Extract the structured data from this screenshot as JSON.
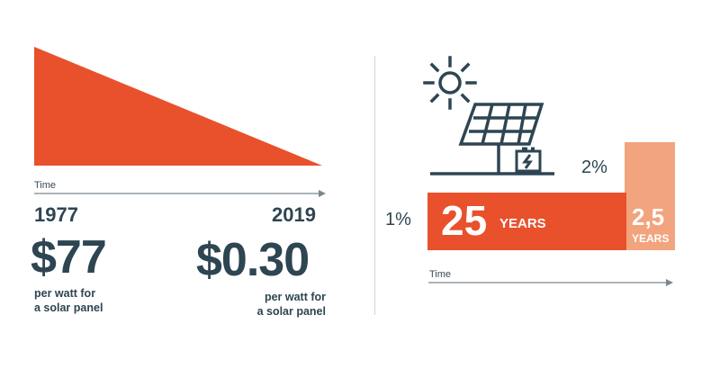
{
  "colors": {
    "accent": "#e8512b",
    "accent_light": "#f2a47e",
    "text": "#2e4552",
    "arrow": "#7a8790"
  },
  "icons": {
    "solar_panel": "solar-panel-icon",
    "sun": "sun-icon",
    "battery": "battery-icon"
  },
  "left": {
    "axis_label": "Time",
    "start_year": "1977",
    "end_year": "2019",
    "start_price": "$77",
    "end_price": "$0.30",
    "start_unit_line1": "per watt for",
    "start_unit_line2": "a solar panel",
    "end_unit_line1": "per watt for",
    "end_unit_line2": "a solar panel"
  },
  "right": {
    "axis_label": "Time",
    "low_rate": "1%",
    "high_rate": "2%",
    "long_value": "25",
    "long_unit": "YEARS",
    "short_value": "2,5",
    "short_unit": "YEARS"
  }
}
